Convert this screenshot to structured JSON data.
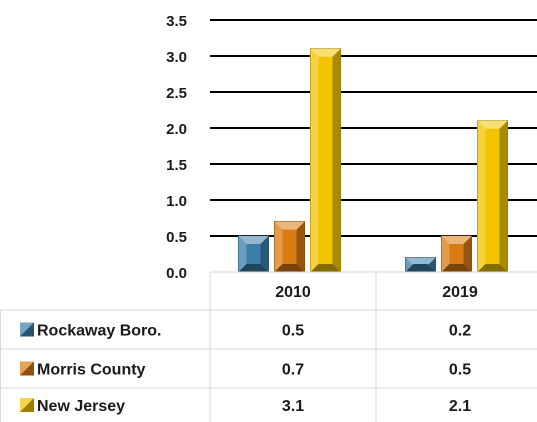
{
  "chart_data": {
    "type": "bar",
    "categories": [
      "2010",
      "2019"
    ],
    "series": [
      {
        "name": "Rockaway Boro.",
        "values": [
          0.5,
          0.2
        ],
        "color": "#3a7ea8"
      },
      {
        "name": "Morris County",
        "values": [
          0.7,
          0.5
        ],
        "color": "#d97a12"
      },
      {
        "name": "New Jersey",
        "values": [
          3.1,
          2.1
        ],
        "color": "#f2c400"
      }
    ],
    "ylim": [
      0,
      3.5
    ],
    "yticks": [
      "0.0",
      "0.5",
      "1.0",
      "1.5",
      "2.0",
      "2.5",
      "3.0",
      "3.5"
    ],
    "grid": true,
    "legend": "data-table",
    "data_table": [
      [
        "0.5",
        "0.2"
      ],
      [
        "0.7",
        "0.5"
      ],
      [
        "3.1",
        "2.1"
      ]
    ]
  }
}
